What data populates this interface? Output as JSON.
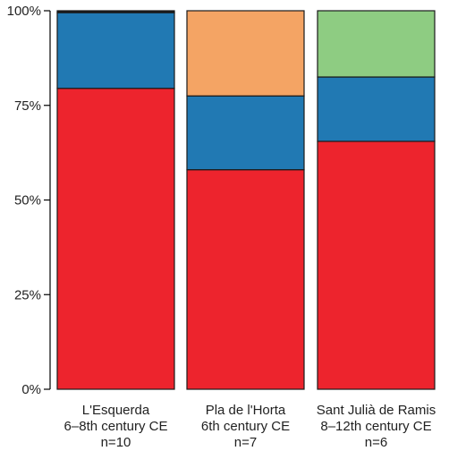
{
  "chart_data": {
    "type": "bar",
    "stacked": true,
    "categories": [
      [
        "L'Esquerda",
        "6–8th century CE",
        "n=10"
      ],
      [
        "Pla de l'Horta",
        "6th century CE",
        "n=7"
      ],
      [
        "Sant Julià de Ramis",
        "8–12th century CE",
        "n=6"
      ]
    ],
    "series": [
      {
        "color": "#ed242d",
        "values": [
          79.5,
          58.0,
          65.5
        ]
      },
      {
        "color": "#2179b3",
        "values": [
          20.0,
          19.5,
          17.0
        ]
      },
      {
        "color": "#f4a464",
        "values": [
          0.0,
          22.5,
          0.0
        ]
      },
      {
        "color": "#8ecc82",
        "values": [
          0.0,
          0.0,
          17.5
        ]
      },
      {
        "color": "#1a1a1a",
        "values": [
          0.5,
          0.0,
          0.0
        ]
      }
    ],
    "y_ticks": [
      "0%",
      "25%",
      "50%",
      "75%",
      "100%"
    ],
    "ylim": [
      0,
      100
    ],
    "xlabel": "",
    "ylabel": "",
    "title": "",
    "grid": false,
    "legend": "none"
  }
}
